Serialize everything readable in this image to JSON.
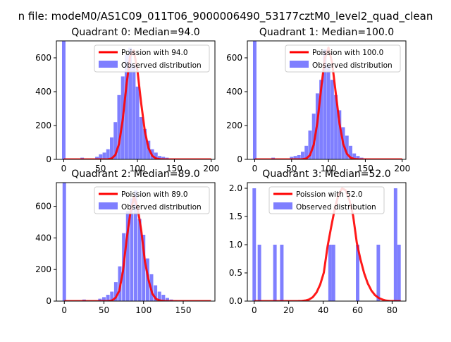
{
  "figure_title": "n file: modeM0/AS1C09_011T06_9000006490_53177cztM0_level2_quad_clean",
  "colors": {
    "hist": "#7f7fff",
    "line": "#ff0000",
    "axis": "#000000",
    "legend_edge": "#cccccc"
  },
  "chart_data": [
    {
      "type": "bar+line",
      "title": "Quadrant 0: Median=94.0",
      "xlim": [
        -10,
        205
      ],
      "ylim": [
        0,
        700
      ],
      "xticks": [
        0,
        50,
        100,
        150,
        200
      ],
      "yticks": [
        0,
        200,
        400,
        600
      ],
      "xlabel": "",
      "ylabel": "",
      "legend": [
        "Poission with 94.0",
        "Observed distribution"
      ],
      "legend_loc": "upper right",
      "hist": {
        "x": [
          0,
          25,
          45,
          50,
          55,
          60,
          65,
          70,
          75,
          80,
          85,
          90,
          95,
          100,
          105,
          110,
          115,
          120,
          125,
          130,
          135,
          140,
          145,
          150,
          155,
          160
        ],
        "counts": [
          700,
          10,
          15,
          30,
          40,
          60,
          130,
          220,
          380,
          490,
          620,
          660,
          560,
          430,
          250,
          180,
          110,
          60,
          40,
          20,
          15,
          10,
          5,
          3,
          2,
          1
        ]
      },
      "poisson": {
        "mu": 94,
        "scale": 650,
        "x_range": [
          0,
          200
        ]
      }
    },
    {
      "type": "bar+line",
      "title": "Quadrant 1: Median=100.0",
      "xlim": [
        -10,
        205
      ],
      "ylim": [
        0,
        700
      ],
      "xticks": [
        0,
        50,
        100,
        150,
        200
      ],
      "yticks": [
        0,
        200,
        400,
        600
      ],
      "xlabel": "",
      "ylabel": "",
      "legend": [
        "Poission with 100.0",
        "Observed distribution"
      ],
      "legend_loc": "upper right",
      "hist": {
        "x": [
          0,
          25,
          50,
          55,
          60,
          65,
          70,
          75,
          80,
          85,
          90,
          95,
          100,
          105,
          110,
          115,
          120,
          125,
          130,
          135,
          140,
          145,
          150,
          155,
          160
        ],
        "counts": [
          700,
          10,
          15,
          20,
          25,
          45,
          80,
          170,
          270,
          390,
          470,
          650,
          560,
          470,
          380,
          290,
          190,
          140,
          80,
          35,
          20,
          10,
          5,
          3,
          2
        ]
      },
      "poisson": {
        "mu": 100,
        "scale": 660,
        "x_range": [
          0,
          200
        ]
      }
    },
    {
      "type": "bar+line",
      "title": "Quadrant 2: Median=89.0",
      "xlim": [
        -10,
        190
      ],
      "ylim": [
        0,
        750
      ],
      "xticks": [
        0,
        50,
        100,
        150
      ],
      "yticks": [
        0,
        200,
        400,
        600
      ],
      "xlabel": "",
      "ylabel": "",
      "legend": [
        "Poission with 89.0",
        "Observed distribution"
      ],
      "legend_loc": "upper right",
      "hist": {
        "x": [
          0,
          25,
          45,
          50,
          55,
          60,
          65,
          70,
          75,
          80,
          85,
          90,
          95,
          100,
          105,
          110,
          115,
          120,
          125,
          130,
          135,
          140,
          145,
          150
        ],
        "counts": [
          750,
          10,
          15,
          25,
          40,
          60,
          120,
          220,
          430,
          570,
          650,
          700,
          520,
          420,
          270,
          170,
          100,
          60,
          40,
          20,
          10,
          5,
          3,
          2
        ]
      },
      "poisson": {
        "mu": 89,
        "scale": 660,
        "x_range": [
          0,
          185
        ]
      }
    },
    {
      "type": "bar+line",
      "title": "Quadrant 3: Median=52.0",
      "xlim": [
        -4,
        88
      ],
      "ylim": [
        0,
        2.1
      ],
      "xticks": [
        0,
        20,
        40,
        60,
        80
      ],
      "yticks": [
        0.0,
        0.5,
        1.0,
        1.5,
        2.0
      ],
      "xlabel": "",
      "ylabel": "",
      "legend": [
        "Poission with 52.0",
        "Observed distribution"
      ],
      "legend_loc": "upper center",
      "hist": {
        "x": [
          0,
          3,
          12,
          16,
          44,
          46,
          60,
          72,
          82,
          84
        ],
        "counts": [
          2,
          1,
          1,
          1,
          1,
          1,
          1,
          1,
          2,
          1
        ]
      },
      "poisson": {
        "mu": 52,
        "scale": 2.0,
        "x_range": [
          0,
          85
        ]
      }
    }
  ]
}
